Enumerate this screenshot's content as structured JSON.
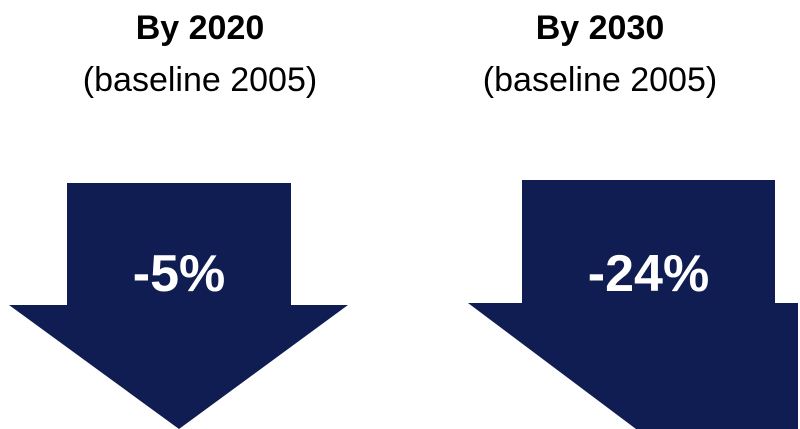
{
  "colors": {
    "arrow_fill": "#101D52",
    "arrow_text": "#FFFFFF",
    "heading_text": "#000000"
  },
  "panels": [
    {
      "heading": "By 2020",
      "subheading": "(baseline 2005)",
      "value": "-5%",
      "icon": "down-arrow"
    },
    {
      "heading": "By 2030",
      "subheading": "(baseline 2005)",
      "value": "-24%",
      "icon": "down-arrow"
    }
  ]
}
